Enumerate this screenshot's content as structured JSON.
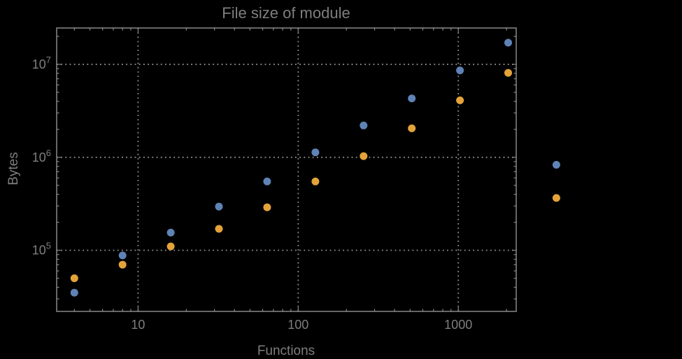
{
  "window": {
    "background_color": "#000000"
  },
  "chart": {
    "title": "File size of module",
    "xlabel": "Functions",
    "ylabel": "Bytes"
  },
  "colors": {
    "background": "#000000",
    "frame": "#898989",
    "grid": "#8f8f8f",
    "text": "#7e7e7e",
    "series_blue": "#5f83b7",
    "series_orange": "#e4a33a"
  },
  "chart_data": {
    "type": "scatter",
    "title": "File size of module",
    "xlabel": "Functions",
    "ylabel": "Bytes",
    "x_scale": "log",
    "y_scale": "log",
    "grid": "dotted",
    "legend": "none",
    "xlim": [
      3.1,
      2300
    ],
    "ylim": [
      22000,
      24600000
    ],
    "x": [
      4,
      8,
      16,
      32,
      64,
      128,
      256,
      512,
      1024,
      2048,
      4096
    ],
    "series": [
      {
        "name": "series-blue",
        "color": "#5f83b7",
        "values": [
          35000,
          88000,
          155000,
          295000,
          550000,
          1130000,
          2200000,
          4300000,
          8600000,
          17100000,
          830000
        ]
      },
      {
        "name": "series-orange",
        "color": "#e4a33a",
        "values": [
          50000,
          70000,
          110000,
          170000,
          290000,
          550000,
          1030000,
          2050000,
          4100000,
          8100000,
          365000
        ]
      }
    ],
    "x_ticks": [
      {
        "value": 10,
        "label": "10"
      },
      {
        "value": 100,
        "label": "100"
      },
      {
        "value": 1000,
        "label": "1000"
      }
    ],
    "y_ticks": [
      {
        "value": 100000,
        "mantissa": "10",
        "exponent": "5"
      },
      {
        "value": 1000000,
        "mantissa": "10",
        "exponent": "6"
      },
      {
        "value": 10000000,
        "mantissa": "10",
        "exponent": "7"
      }
    ],
    "marker_radius": 5.5
  }
}
